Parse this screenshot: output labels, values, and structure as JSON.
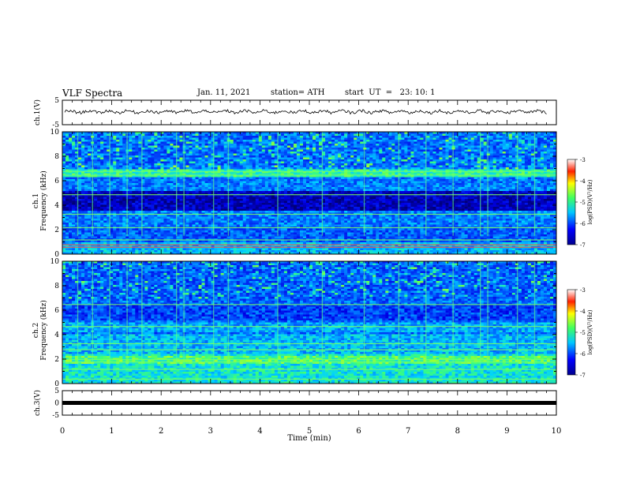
{
  "header": {
    "title": "VLF Spectra",
    "date": "Jan. 11, 2021",
    "station": "station= ATH",
    "start": "start  UT  =   23: 10: 1"
  },
  "chart_data": [
    {
      "type": "line",
      "title": "",
      "ylabel": "ch.1(V)",
      "ylim": [
        -5,
        5
      ],
      "yticks": [
        "5",
        "-5"
      ],
      "xlim": [
        0,
        10
      ],
      "description_level": 0.3
    },
    {
      "type": "heatmap",
      "ylabel": "ch.1",
      "ylabel2": "Frequency  (kHz)",
      "ylim": [
        0,
        10
      ],
      "yticks": [
        "0",
        "2",
        "4",
        "6",
        "8",
        "10"
      ],
      "xlim": [
        0,
        10
      ],
      "colorbar": {
        "ticks": [
          "-3",
          "-4",
          "-5",
          "-6",
          "-7"
        ],
        "label": "log(PSD)(V²/Hz)",
        "range": [
          -7,
          -3
        ]
      }
    },
    {
      "type": "heatmap",
      "ylabel": "ch.2",
      "ylabel2": "Frequency  (kHz)",
      "ylim": [
        0,
        10
      ],
      "yticks": [
        "0",
        "2",
        "4",
        "6",
        "8",
        "10"
      ],
      "xlim": [
        0,
        10
      ],
      "colorbar": {
        "ticks": [
          "-3",
          "-4",
          "-5",
          "-6",
          "-7"
        ],
        "label": "log(PSD)(V²/Hz)",
        "range": [
          -7,
          -3
        ]
      }
    },
    {
      "type": "line",
      "ylabel": "ch.3(V)",
      "ylim": [
        -5,
        5
      ],
      "yticks": [
        "5",
        "0",
        "-5"
      ],
      "xlim": [
        0,
        10
      ],
      "constant_level": 0
    }
  ],
  "xaxis": {
    "label": "Time  (min)",
    "ticks": [
      "0",
      "1",
      "2",
      "3",
      "4",
      "5",
      "6",
      "7",
      "8",
      "9",
      "10"
    ]
  }
}
